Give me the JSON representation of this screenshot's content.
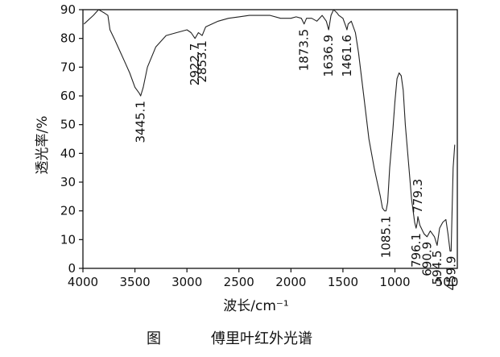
{
  "chart_data": {
    "type": "line",
    "xlabel": "波长/cm⁻¹",
    "ylabel": "透光率/%",
    "xlim": [
      4000,
      400
    ],
    "ylim": [
      0,
      90
    ],
    "x_ticks": [
      "4000",
      "3500",
      "3000",
      "2500",
      "2000",
      "1500",
      "1000",
      "500"
    ],
    "y_ticks": [
      "0",
      "10",
      "20",
      "30",
      "40",
      "50",
      "60",
      "70",
      "80",
      "90"
    ],
    "x_tick_values": [
      4000,
      3500,
      3000,
      2500,
      2000,
      1500,
      1000,
      500
    ],
    "y_tick_values": [
      0,
      10,
      20,
      30,
      40,
      50,
      60,
      70,
      80,
      90
    ],
    "caption_fig": "图",
    "caption_title": "傅里叶红外光谱",
    "series": [
      {
        "x": [
          3990,
          3900,
          3850,
          3800,
          3760,
          3740,
          3700,
          3650,
          3600,
          3550,
          3500,
          3460,
          3445,
          3420,
          3380,
          3300,
          3200,
          3100,
          3000,
          2960,
          2922.7,
          2890,
          2853.1,
          2820,
          2700,
          2600,
          2500,
          2400,
          2300,
          2200,
          2100,
          2000,
          1950,
          1900,
          1873.5,
          1850,
          1800,
          1750,
          1700,
          1660,
          1636.9,
          1615,
          1590,
          1560,
          1540,
          1500,
          1470,
          1461.6,
          1450,
          1420,
          1380,
          1350,
          1300,
          1250,
          1200,
          1170,
          1140,
          1120,
          1100,
          1085.1,
          1070,
          1050,
          1020,
          1000,
          980,
          960,
          940,
          920,
          900,
          870,
          840,
          810,
          796.1,
          785,
          779.3,
          760,
          720,
          690.9,
          660,
          620,
          594.5,
          570,
          540,
          510,
          490,
          470,
          459.9,
          450,
          440,
          425
        ],
        "y": [
          85,
          88,
          90,
          89,
          88,
          83,
          80,
          76,
          72,
          68,
          63,
          61,
          60,
          63,
          70,
          77,
          81,
          82,
          83,
          82,
          80,
          82,
          81,
          84,
          86,
          87,
          87.5,
          88,
          88,
          88,
          87,
          87,
          87.5,
          87,
          85,
          87,
          87,
          86,
          88,
          86,
          83,
          88,
          90,
          89,
          88,
          87,
          84,
          83,
          85,
          86,
          82,
          75,
          60,
          45,
          35,
          30,
          25,
          21,
          20,
          20,
          23,
          35,
          48,
          58,
          66,
          68,
          67,
          62,
          50,
          37,
          24,
          16,
          14,
          16,
          18,
          15,
          12,
          11,
          13,
          11,
          8,
          14,
          16,
          17,
          12,
          6,
          6,
          20,
          35,
          43
        ]
      }
    ],
    "annotations": [
      {
        "text": "3445.1",
        "x": 3445.1,
        "y": 60,
        "pos": "below"
      },
      {
        "text": "2922.7",
        "x": 2922.7,
        "y": 80,
        "pos": "below"
      },
      {
        "text": "2853.1",
        "x": 2853.1,
        "y": 81,
        "pos": "below"
      },
      {
        "text": "1873.5",
        "x": 1873.5,
        "y": 85,
        "pos": "below"
      },
      {
        "text": "1636.9",
        "x": 1636.9,
        "y": 83,
        "pos": "below"
      },
      {
        "text": "1461.6",
        "x": 1461.6,
        "y": 83,
        "pos": "below"
      },
      {
        "text": "1085.1",
        "x": 1085.1,
        "y": 20,
        "pos": "below"
      },
      {
        "text": "796.1",
        "x": 796.1,
        "y": 14,
        "pos": "below"
      },
      {
        "text": "779.3",
        "x": 779.3,
        "y": 18,
        "pos": "above"
      },
      {
        "text": "690.9",
        "x": 690.9,
        "y": 11,
        "pos": "below"
      },
      {
        "text": "594.5",
        "x": 594.5,
        "y": 8,
        "pos": "below"
      },
      {
        "text": "459.9",
        "x": 459.9,
        "y": 6,
        "pos": "below"
      }
    ]
  }
}
